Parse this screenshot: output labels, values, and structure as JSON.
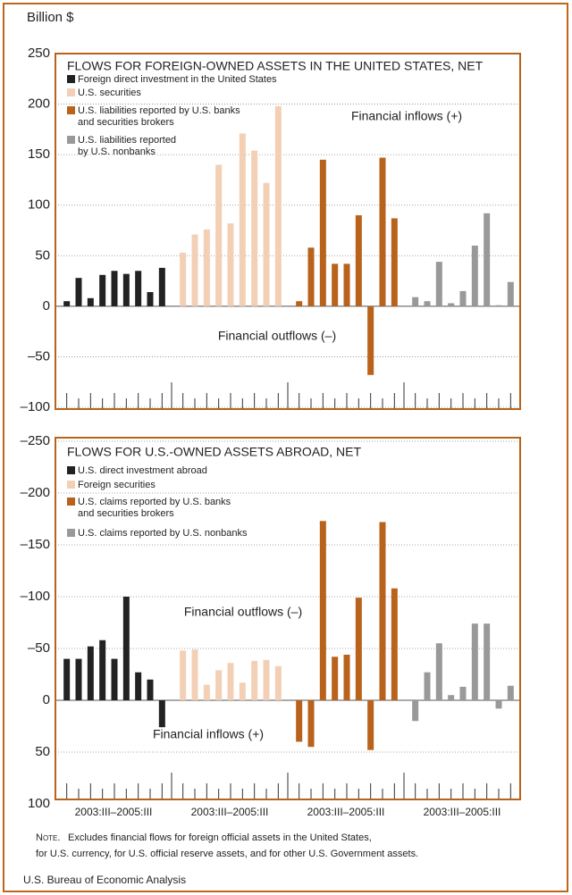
{
  "chart_data": [
    {
      "type": "bar",
      "title": "FLOWS FOR FOREIGN-OWNED ASSETS IN THE UNITED STATES, NET",
      "ylabel": "Billion $",
      "ylim": [
        -100,
        250
      ],
      "yticks": [
        {
          "value": -100,
          "label": "–100"
        },
        {
          "value": -50,
          "label": "–50"
        },
        0,
        50,
        100,
        150,
        200,
        250
      ],
      "grid": true,
      "annotations": [
        "Financial inflows (+)",
        "Financial outflows (–)"
      ],
      "series": [
        {
          "name": "Foreign direct investment in the United States",
          "color": "#222222",
          "values": [
            5,
            28,
            8,
            31,
            35,
            32,
            35,
            14,
            38
          ]
        },
        {
          "name": "U.S. securities",
          "color": "#f3d0b5",
          "values": [
            53,
            71,
            76,
            140,
            82,
            171,
            154,
            122,
            198
          ]
        },
        {
          "name": "U.S. liabilities reported by U.S. banks\nand securities brokers",
          "color": "#b8621b",
          "values": [
            5,
            58,
            145,
            42,
            42,
            90,
            -68,
            147,
            87
          ]
        },
        {
          "name": "U.S. liabilities reported\nby U.S. nonbanks",
          "color": "#999999",
          "values": [
            9,
            5,
            44,
            3,
            15,
            60,
            92,
            1,
            24
          ]
        }
      ]
    },
    {
      "type": "bar",
      "title": "FLOWS FOR U.S.-OWNED ASSETS ABROAD, NET",
      "ylim": [
        100,
        -250
      ],
      "yticks": [
        {
          "value": -250,
          "label": "–250"
        },
        {
          "value": -200,
          "label": "–200"
        },
        {
          "value": -150,
          "label": "–150"
        },
        {
          "value": -100,
          "label": "–100"
        },
        {
          "value": -50,
          "label": "–50"
        },
        0,
        50,
        100
      ],
      "grid": true,
      "annotations": [
        "Financial outflows (–)",
        "Financial inflows (+)"
      ],
      "x_labels": [
        "2003:III–2005:III",
        "2003:III–2005:III",
        "2003:III–2005:III",
        "2003:III–2005:III"
      ],
      "series": [
        {
          "name": "U.S. direct investment abroad",
          "color": "#222222",
          "values": [
            -40,
            -40,
            -52,
            -58,
            -40,
            -100,
            -27,
            -20,
            26
          ]
        },
        {
          "name": "Foreign securities",
          "color": "#f3d0b5",
          "values": [
            -48,
            -49,
            -15,
            -29,
            -36,
            -17,
            -38,
            -39,
            -33
          ]
        },
        {
          "name": "U.S. claims reported by U.S. banks\nand securities brokers",
          "color": "#b8621b",
          "values": [
            40,
            45,
            -173,
            -42,
            -44,
            -99,
            48,
            -172,
            -108
          ]
        },
        {
          "name": "U.S. claims reported by U.S. nonbanks",
          "color": "#999999",
          "values": [
            20,
            -27,
            -55,
            -5,
            -13,
            -74,
            -74,
            8,
            -14
          ]
        }
      ]
    }
  ],
  "note_label": "Note.",
  "note": [
    "Excludes financial flows for foreign official assets in the United States,",
    "for U.S. currency, for U.S. official reserve assets, and for other U.S. Government assets."
  ],
  "source": "U.S. Bureau of Economic Analysis"
}
